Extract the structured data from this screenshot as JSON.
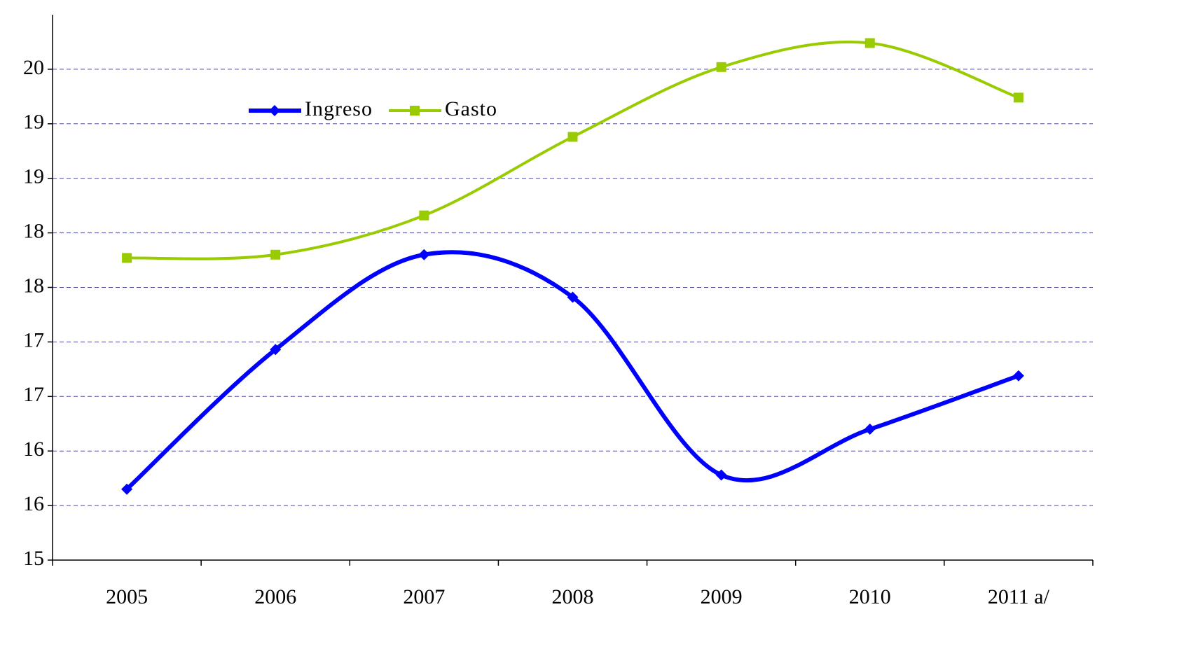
{
  "chart_data": {
    "type": "line",
    "categories": [
      "2005",
      "2006",
      "2007",
      "2008",
      "2009",
      "2010",
      "2011 a/"
    ],
    "series": [
      {
        "name": "Ingreso",
        "color": "#0000ff",
        "marker": "diamond",
        "values": [
          15.65,
          16.93,
          17.8,
          17.41,
          15.78,
          16.2,
          16.69
        ]
      },
      {
        "name": "Gasto",
        "color": "#99cc00",
        "marker": "square",
        "values": [
          17.77,
          17.8,
          18.16,
          18.88,
          19.52,
          19.74,
          19.24
        ]
      }
    ],
    "ylim": [
      15,
      20
    ],
    "yticks": [
      15,
      {
        "value": 15.5,
        "label": "16"
      },
      16,
      {
        "value": 16.5,
        "label": "17"
      },
      17,
      {
        "value": 17.5,
        "label": "18"
      },
      18,
      {
        "value": 18.5,
        "label": "19"
      },
      19,
      {
        "value": 19.5,
        "label": "20"
      }
    ],
    "grid": true,
    "legend": "top-left"
  }
}
